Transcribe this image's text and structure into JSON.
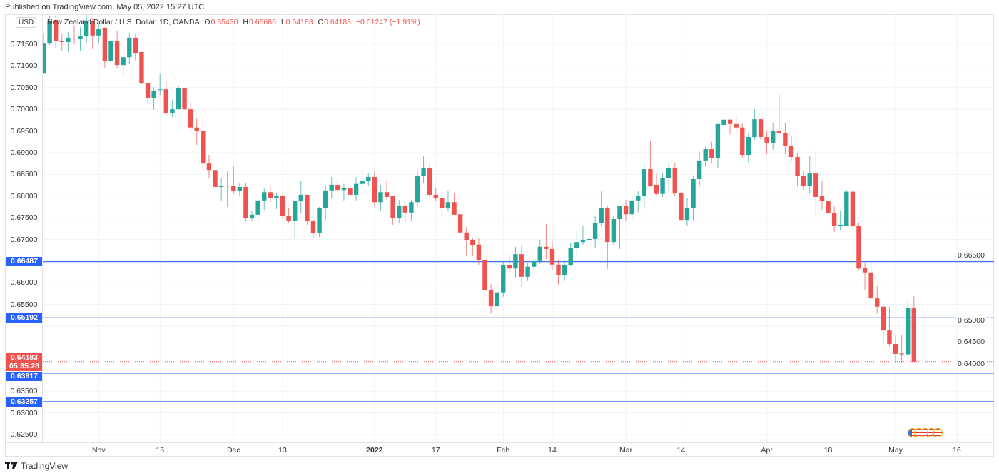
{
  "published": "Published on TradingView.com, May 05, 2022 15:27 UTC",
  "legend": {
    "symbol": "New Zealand Dollar / U.S. Dollar, 1D, OANDA",
    "o_label": "O",
    "o": "0.65430",
    "h_label": "H",
    "h": "0.65686",
    "l_label": "L",
    "l": "0.64183",
    "c_label": "C",
    "c": "0.64183",
    "change": "−0.01247 (−1.91%)"
  },
  "currency_badge": "USD",
  "footer": {
    "logo_text": "TradingView"
  },
  "colors": {
    "up": "#26a69a",
    "down": "#ef5350",
    "hline": "#2962ff",
    "grid": "#f0f3fa"
  },
  "chart_data": {
    "type": "candlestick",
    "title": "New Zealand Dollar / U.S. Dollar, 1D, OANDA",
    "ylim": [
      0.6225,
      0.7225
    ],
    "y_ticks": [
      "0.71500",
      "0.71000",
      "0.70500",
      "0.70000",
      "0.69500",
      "0.69000",
      "0.68500",
      "0.68000",
      "0.67500",
      "0.67000",
      "0.66500",
      "0.66000",
      "0.65500",
      "0.65000",
      "0.64500",
      "0.64000",
      "0.63500",
      "0.63000",
      "0.62500"
    ],
    "x_ticks": [
      {
        "label": "Nov",
        "bar": 9
      },
      {
        "label": "15",
        "bar": 19
      },
      {
        "label": "Dec",
        "bar": 31
      },
      {
        "label": "13",
        "bar": 39
      },
      {
        "label": "2022",
        "bar": 54
      },
      {
        "label": "17",
        "bar": 64
      },
      {
        "label": "Feb",
        "bar": 75
      },
      {
        "label": "14",
        "bar": 83
      },
      {
        "label": "Mar",
        "bar": 95
      },
      {
        "label": "14",
        "bar": 104
      },
      {
        "label": "Apr",
        "bar": 118
      },
      {
        "label": "18",
        "bar": 128
      },
      {
        "label": "May",
        "bar": 139
      },
      {
        "label": "16",
        "bar": 149
      }
    ],
    "horizontal_lines": [
      "0.66487",
      "0.65192",
      "0.63917",
      "0.63257"
    ],
    "current_price": {
      "value": "0.64183",
      "countdown": "05:35:28"
    },
    "ohlc": [
      [
        0.7084,
        0.7173,
        0.7083,
        0.7153
      ],
      [
        0.7153,
        0.7216,
        0.7148,
        0.7203
      ],
      [
        0.7206,
        0.7216,
        0.7142,
        0.7157
      ],
      [
        0.7158,
        0.7173,
        0.7134,
        0.7155
      ],
      [
        0.7155,
        0.7178,
        0.7132,
        0.7165
      ],
      [
        0.7163,
        0.7194,
        0.7152,
        0.7162
      ],
      [
        0.7162,
        0.7189,
        0.7134,
        0.7168
      ],
      [
        0.7168,
        0.7217,
        0.7153,
        0.7203
      ],
      [
        0.7203,
        0.7211,
        0.7139,
        0.717
      ],
      [
        0.717,
        0.7198,
        0.7153,
        0.7186
      ],
      [
        0.7188,
        0.7188,
        0.7096,
        0.7112
      ],
      [
        0.7112,
        0.7175,
        0.7104,
        0.7158
      ],
      [
        0.7158,
        0.718,
        0.7096,
        0.7102
      ],
      [
        0.7102,
        0.7127,
        0.7074,
        0.712
      ],
      [
        0.712,
        0.7176,
        0.7104,
        0.7165
      ],
      [
        0.7165,
        0.7175,
        0.7111,
        0.713
      ],
      [
        0.7132,
        0.7132,
        0.7058,
        0.7061
      ],
      [
        0.7061,
        0.7061,
        0.7013,
        0.7025
      ],
      [
        0.7025,
        0.7051,
        0.6999,
        0.7043
      ],
      [
        0.7045,
        0.7083,
        0.7033,
        0.7046
      ],
      [
        0.7046,
        0.7064,
        0.6986,
        0.6992
      ],
      [
        0.6992,
        0.7022,
        0.6982,
        0.7
      ],
      [
        0.7,
        0.7053,
        0.6999,
        0.7048
      ],
      [
        0.7048,
        0.7048,
        0.6999,
        0.7
      ],
      [
        0.7,
        0.7017,
        0.6949,
        0.6958
      ],
      [
        0.6958,
        0.6979,
        0.6918,
        0.6951
      ],
      [
        0.6951,
        0.6976,
        0.6857,
        0.6875
      ],
      [
        0.6875,
        0.6895,
        0.6842,
        0.686
      ],
      [
        0.686,
        0.6864,
        0.6806,
        0.6821
      ],
      [
        0.6821,
        0.6841,
        0.679,
        0.6824
      ],
      [
        0.6824,
        0.6857,
        0.6775,
        0.6823
      ],
      [
        0.6824,
        0.6869,
        0.6805,
        0.6811
      ],
      [
        0.6811,
        0.6831,
        0.6801,
        0.6821
      ],
      [
        0.6821,
        0.6831,
        0.6744,
        0.675
      ],
      [
        0.675,
        0.6765,
        0.6742,
        0.6757
      ],
      [
        0.6757,
        0.6795,
        0.6739,
        0.679
      ],
      [
        0.679,
        0.6819,
        0.6768,
        0.6809
      ],
      [
        0.6809,
        0.6824,
        0.6783,
        0.6795
      ],
      [
        0.6795,
        0.6808,
        0.677,
        0.68
      ],
      [
        0.68,
        0.6803,
        0.6749,
        0.6755
      ],
      [
        0.6755,
        0.6773,
        0.6737,
        0.6742
      ],
      [
        0.6742,
        0.679,
        0.6704,
        0.6788
      ],
      [
        0.6788,
        0.6834,
        0.676,
        0.6803
      ],
      [
        0.6803,
        0.6803,
        0.6734,
        0.6742
      ],
      [
        0.6742,
        0.6747,
        0.6704,
        0.6714
      ],
      [
        0.6714,
        0.6775,
        0.6706,
        0.6773
      ],
      [
        0.6773,
        0.6823,
        0.6744,
        0.6813
      ],
      [
        0.6813,
        0.6844,
        0.6796,
        0.6826
      ],
      [
        0.6826,
        0.6837,
        0.6806,
        0.6814
      ],
      [
        0.6814,
        0.6828,
        0.679,
        0.6818
      ],
      [
        0.6818,
        0.6829,
        0.679,
        0.6803
      ],
      [
        0.6803,
        0.6844,
        0.679,
        0.6828
      ],
      [
        0.6828,
        0.6859,
        0.6818,
        0.6834
      ],
      [
        0.6834,
        0.6852,
        0.6823,
        0.6844
      ],
      [
        0.6844,
        0.6857,
        0.6775,
        0.6786
      ],
      [
        0.6786,
        0.6826,
        0.6767,
        0.6809
      ],
      [
        0.6809,
        0.6837,
        0.6791,
        0.6798
      ],
      [
        0.68,
        0.68,
        0.6734,
        0.6749
      ],
      [
        0.6749,
        0.6791,
        0.6737,
        0.6777
      ],
      [
        0.6777,
        0.6785,
        0.6739,
        0.6762
      ],
      [
        0.6762,
        0.6791,
        0.6742,
        0.6786
      ],
      [
        0.6786,
        0.6859,
        0.6775,
        0.6847
      ],
      [
        0.6847,
        0.6893,
        0.6829,
        0.6864
      ],
      [
        0.6864,
        0.6875,
        0.6796,
        0.6803
      ],
      [
        0.6803,
        0.6819,
        0.6788,
        0.6796
      ],
      [
        0.6796,
        0.681,
        0.6754,
        0.6772
      ],
      [
        0.6772,
        0.6813,
        0.6765,
        0.6786
      ],
      [
        0.6786,
        0.6806,
        0.6757,
        0.6757
      ],
      [
        0.6758,
        0.6758,
        0.6714,
        0.6716
      ],
      [
        0.6716,
        0.6729,
        0.6661,
        0.6699
      ],
      [
        0.6699,
        0.6704,
        0.6661,
        0.6686
      ],
      [
        0.6688,
        0.6704,
        0.664,
        0.6652
      ],
      [
        0.6653,
        0.6663,
        0.6574,
        0.6584
      ],
      [
        0.6584,
        0.6597,
        0.6531,
        0.6546
      ],
      [
        0.6546,
        0.6599,
        0.6545,
        0.6578
      ],
      [
        0.6578,
        0.665,
        0.6568,
        0.664
      ],
      [
        0.664,
        0.6665,
        0.6625,
        0.6633
      ],
      [
        0.6633,
        0.6683,
        0.6612,
        0.6666
      ],
      [
        0.6666,
        0.6686,
        0.6591,
        0.6614
      ],
      [
        0.6614,
        0.6645,
        0.6604,
        0.6637
      ],
      [
        0.6637,
        0.6655,
        0.663,
        0.665
      ],
      [
        0.665,
        0.6699,
        0.6643,
        0.6683
      ],
      [
        0.6683,
        0.6735,
        0.6655,
        0.6678
      ],
      [
        0.6678,
        0.6696,
        0.6629,
        0.6642
      ],
      [
        0.6642,
        0.6652,
        0.6596,
        0.6617
      ],
      [
        0.6617,
        0.6648,
        0.6604,
        0.664
      ],
      [
        0.664,
        0.6693,
        0.6638,
        0.6681
      ],
      [
        0.6681,
        0.6719,
        0.6661,
        0.6694
      ],
      [
        0.6694,
        0.6731,
        0.6688,
        0.6698
      ],
      [
        0.6698,
        0.6737,
        0.6685,
        0.6701
      ],
      [
        0.6701,
        0.6755,
        0.6681,
        0.6737
      ],
      [
        0.6737,
        0.6811,
        0.6732,
        0.6773
      ],
      [
        0.6773,
        0.6778,
        0.6632,
        0.6694
      ],
      [
        0.6694,
        0.6754,
        0.6688,
        0.6747
      ],
      [
        0.6747,
        0.6778,
        0.6678,
        0.6777
      ],
      [
        0.6777,
        0.6791,
        0.6742,
        0.6758
      ],
      [
        0.6758,
        0.6801,
        0.6745,
        0.679
      ],
      [
        0.679,
        0.6811,
        0.6763,
        0.6801
      ],
      [
        0.68,
        0.6874,
        0.677,
        0.6862
      ],
      [
        0.6862,
        0.6928,
        0.6821,
        0.6824
      ],
      [
        0.6826,
        0.6852,
        0.6801,
        0.6805
      ],
      [
        0.6805,
        0.6854,
        0.6798,
        0.6842
      ],
      [
        0.6842,
        0.6875,
        0.6811,
        0.6864
      ],
      [
        0.6864,
        0.6875,
        0.6801,
        0.6806
      ],
      [
        0.6808,
        0.6814,
        0.6745,
        0.6745
      ],
      [
        0.6745,
        0.6795,
        0.6731,
        0.6773
      ],
      [
        0.6773,
        0.6846,
        0.6744,
        0.6839
      ],
      [
        0.6839,
        0.6902,
        0.6824,
        0.6882
      ],
      [
        0.6882,
        0.6915,
        0.6867,
        0.6908
      ],
      [
        0.6908,
        0.6925,
        0.6875,
        0.6887
      ],
      [
        0.6887,
        0.6966,
        0.6865,
        0.6966
      ],
      [
        0.6964,
        0.699,
        0.6936,
        0.6976
      ],
      [
        0.6976,
        0.6977,
        0.6943,
        0.6966
      ],
      [
        0.6966,
        0.6987,
        0.6944,
        0.6958
      ],
      [
        0.6958,
        0.6969,
        0.6888,
        0.6895
      ],
      [
        0.6895,
        0.6946,
        0.6877,
        0.6936
      ],
      [
        0.6936,
        0.7,
        0.693,
        0.6977
      ],
      [
        0.6977,
        0.6979,
        0.693,
        0.6936
      ],
      [
        0.6936,
        0.6949,
        0.6897,
        0.6923
      ],
      [
        0.6923,
        0.6969,
        0.6907,
        0.6951
      ],
      [
        0.6951,
        0.7035,
        0.6935,
        0.6946
      ],
      [
        0.6946,
        0.6969,
        0.6897,
        0.6916
      ],
      [
        0.6916,
        0.6939,
        0.6882,
        0.689
      ],
      [
        0.689,
        0.69,
        0.6823,
        0.6847
      ],
      [
        0.6847,
        0.6857,
        0.6814,
        0.6824
      ],
      [
        0.6824,
        0.6892,
        0.6806,
        0.6852
      ],
      [
        0.6852,
        0.6903,
        0.6755,
        0.6798
      ],
      [
        0.68,
        0.6836,
        0.6768,
        0.6788
      ],
      [
        0.6788,
        0.6788,
        0.6758,
        0.676
      ],
      [
        0.676,
        0.6778,
        0.6717,
        0.6732
      ],
      [
        0.6732,
        0.6765,
        0.6722,
        0.6734
      ],
      [
        0.6732,
        0.6814,
        0.6731,
        0.681
      ],
      [
        0.681,
        0.6811,
        0.6729,
        0.6731
      ],
      [
        0.6732,
        0.6739,
        0.6629,
        0.6633
      ],
      [
        0.6635,
        0.6647,
        0.6584,
        0.6624
      ],
      [
        0.6624,
        0.6647,
        0.6564,
        0.6564
      ],
      [
        0.6564,
        0.6592,
        0.6531,
        0.6545
      ],
      [
        0.6545,
        0.6548,
        0.6457,
        0.649
      ],
      [
        0.649,
        0.6545,
        0.6454,
        0.6459
      ],
      [
        0.6459,
        0.6476,
        0.6416,
        0.6436
      ],
      [
        0.6437,
        0.6479,
        0.6415,
        0.6435
      ],
      [
        0.6435,
        0.6558,
        0.6425,
        0.6543
      ],
      [
        0.6543,
        0.65686,
        0.64183,
        0.64183
      ]
    ]
  }
}
